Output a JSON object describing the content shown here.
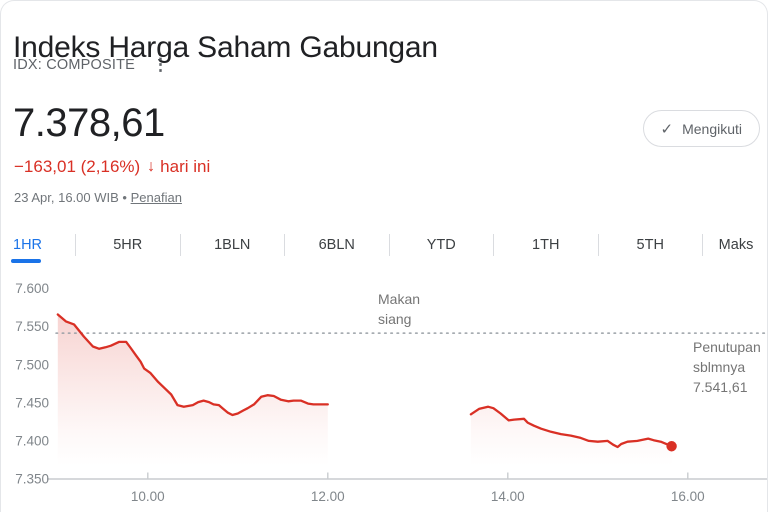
{
  "header": {
    "title": "Indeks Harga Saham Gabungan",
    "ticker": "IDX: COMPOSITE",
    "kebab_icon": "vertical-three-dots",
    "price": "7.378,61",
    "change": "−163,01 (2,16%)",
    "change_arrow": "↓",
    "change_period": "hari ini",
    "timestamp": "23 Apr, 16.00 WIB",
    "dot_separator": "•",
    "disclaimer": "Penafian",
    "follow_button": {
      "check": "✓",
      "label": "Mengikuti"
    }
  },
  "tabs": [
    {
      "label": "1HR",
      "active": true
    },
    {
      "label": "5HR",
      "active": false
    },
    {
      "label": "1BLN",
      "active": false
    },
    {
      "label": "6BLN",
      "active": false
    },
    {
      "label": "YTD",
      "active": false
    },
    {
      "label": "1TH",
      "active": false
    },
    {
      "label": "5TH",
      "active": false
    },
    {
      "label": "Maks",
      "active": false
    }
  ],
  "chart_data": {
    "type": "line",
    "x_axis": {
      "unit": "time WIB (decimal hours)",
      "range": [
        8.98,
        16.88
      ],
      "ticks": [
        10,
        12,
        14,
        16
      ],
      "tick_labels": [
        "10.00",
        "12.00",
        "14.00",
        "16.00"
      ]
    },
    "y_axis": {
      "range": [
        7350,
        7610
      ],
      "ticks": [
        7600,
        7550,
        7500,
        7450,
        7400,
        7350
      ],
      "tick_labels": [
        "7.600",
        "7.550",
        "7.500",
        "7.450",
        "7.400",
        "7.350"
      ]
    },
    "previous_close": {
      "value": 7541.61,
      "label": "Penutupan\nsblmnya\n7.541,61"
    },
    "lunch_break_label": "Makan\nsiang",
    "colors": {
      "line": "#d93025",
      "fill_top": "rgba(217,48,37,0.26)",
      "fill_bottom": "rgba(217,48,37,0)",
      "axis": "#c9cccf",
      "tick_text": "#80868b",
      "dotted": "#9aa0a6",
      "active_tab": "#1a73e8",
      "change_text": "#d93025"
    },
    "series": [
      {
        "name": "sesi-pagi",
        "points": [
          [
            9.0,
            7566
          ],
          [
            9.09,
            7557
          ],
          [
            9.18,
            7553
          ],
          [
            9.29,
            7537
          ],
          [
            9.39,
            7524
          ],
          [
            9.46,
            7521
          ],
          [
            9.53,
            7523
          ],
          [
            9.59,
            7525
          ],
          [
            9.68,
            7530
          ],
          [
            9.76,
            7530
          ],
          [
            9.81,
            7522
          ],
          [
            9.87,
            7512
          ],
          [
            9.92,
            7504
          ],
          [
            9.96,
            7495
          ],
          [
            10.03,
            7489
          ],
          [
            10.11,
            7478
          ],
          [
            10.18,
            7470
          ],
          [
            10.26,
            7461
          ],
          [
            10.33,
            7447
          ],
          [
            10.4,
            7445
          ],
          [
            10.5,
            7447
          ],
          [
            10.56,
            7451
          ],
          [
            10.62,
            7453
          ],
          [
            10.68,
            7451
          ],
          [
            10.73,
            7448
          ],
          [
            10.79,
            7447
          ],
          [
            10.83,
            7443
          ],
          [
            10.89,
            7437
          ],
          [
            10.94,
            7434
          ],
          [
            11.0,
            7436
          ],
          [
            11.06,
            7440
          ],
          [
            11.11,
            7443
          ],
          [
            11.18,
            7448
          ],
          [
            11.26,
            7458
          ],
          [
            11.33,
            7460
          ],
          [
            11.4,
            7459
          ],
          [
            11.48,
            7454
          ],
          [
            11.56,
            7452
          ],
          [
            11.62,
            7453
          ],
          [
            11.7,
            7453
          ],
          [
            11.78,
            7449
          ],
          [
            11.84,
            7448
          ],
          [
            11.92,
            7448
          ],
          [
            12.0,
            7448
          ]
        ],
        "end_dot": false
      },
      {
        "name": "sesi-sore",
        "points": [
          [
            13.59,
            7435
          ],
          [
            13.68,
            7442
          ],
          [
            13.78,
            7445
          ],
          [
            13.84,
            7443
          ],
          [
            13.92,
            7436
          ],
          [
            14.01,
            7427
          ],
          [
            14.07,
            7428
          ],
          [
            14.18,
            7429
          ],
          [
            14.22,
            7424
          ],
          [
            14.29,
            7420
          ],
          [
            14.37,
            7416
          ],
          [
            14.48,
            7412
          ],
          [
            14.59,
            7409
          ],
          [
            14.7,
            7407
          ],
          [
            14.81,
            7404
          ],
          [
            14.9,
            7400
          ],
          [
            15.0,
            7399
          ],
          [
            15.11,
            7400
          ],
          [
            15.17,
            7395
          ],
          [
            15.22,
            7392
          ],
          [
            15.26,
            7396
          ],
          [
            15.33,
            7399
          ],
          [
            15.44,
            7400
          ],
          [
            15.56,
            7403
          ],
          [
            15.62,
            7401
          ],
          [
            15.7,
            7399
          ],
          [
            15.78,
            7395
          ],
          [
            15.82,
            7393
          ]
        ],
        "end_dot": true
      }
    ]
  }
}
